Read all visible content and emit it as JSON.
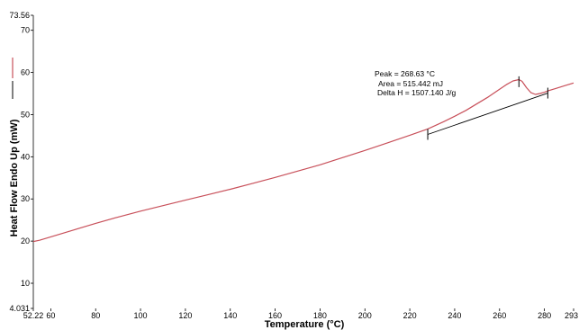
{
  "chart_data": {
    "type": "line",
    "xlabel": "Temperature (°C)",
    "ylabel": "Heat Flow Endo Up (mW)",
    "xlim": [
      52.22,
      293
    ],
    "ylim": [
      4.031,
      73.56
    ],
    "x_ticks": [
      {
        "value": 52.22,
        "label": "52.22"
      },
      {
        "value": 60,
        "label": "60"
      },
      {
        "value": 80,
        "label": "80"
      },
      {
        "value": 100,
        "label": "100"
      },
      {
        "value": 120,
        "label": "120"
      },
      {
        "value": 140,
        "label": "140"
      },
      {
        "value": 160,
        "label": "160"
      },
      {
        "value": 180,
        "label": "180"
      },
      {
        "value": 200,
        "label": "200"
      },
      {
        "value": 220,
        "label": "220"
      },
      {
        "value": 240,
        "label": "240"
      },
      {
        "value": 260,
        "label": "260"
      },
      {
        "value": 280,
        "label": "280"
      },
      {
        "value": 293,
        "label": "293"
      }
    ],
    "y_ticks": [
      {
        "value": 4.031,
        "label": "4.031"
      },
      {
        "value": 10,
        "label": "10"
      },
      {
        "value": 20,
        "label": "20"
      },
      {
        "value": 30,
        "label": "30"
      },
      {
        "value": 40,
        "label": "40"
      },
      {
        "value": 50,
        "label": "50"
      },
      {
        "value": 60,
        "label": "60"
      },
      {
        "value": 70,
        "label": "70"
      },
      {
        "value": 73.56,
        "label": "73.56"
      }
    ],
    "series": [
      {
        "color": "#c8505a",
        "x": [
          52.22,
          55,
          60,
          70,
          80,
          90,
          100,
          110,
          120,
          130,
          140,
          150,
          160,
          170,
          180,
          190,
          200,
          210,
          220,
          228,
          235,
          240,
          245,
          250,
          255,
          260,
          263,
          266,
          268.63,
          270,
          272,
          274,
          276,
          278,
          280,
          282,
          285,
          290,
          293
        ],
        "y": [
          19.9,
          20.2,
          21.0,
          22.6,
          24.2,
          25.7,
          27.1,
          28.4,
          29.7,
          31.0,
          32.3,
          33.7,
          35.1,
          36.6,
          38.1,
          39.8,
          41.5,
          43.3,
          45.1,
          46.6,
          48.3,
          49.6,
          51.0,
          52.6,
          54.2,
          56.0,
          57.1,
          58.0,
          58.3,
          57.9,
          56.4,
          55.2,
          54.8,
          55.0,
          55.3,
          55.7,
          56.2,
          57.0,
          57.5
        ]
      }
    ],
    "baseline": {
      "color": "#000000",
      "x": [
        228,
        281.5
      ],
      "y": [
        45.3,
        55.1
      ]
    },
    "markers": [
      {
        "x": 228,
        "y": 45.3
      },
      {
        "x": 268.63,
        "y": 57.8
      },
      {
        "x": 281.5,
        "y": 55.1
      }
    ],
    "annotations": [
      "Peak = 268.63 °C",
      "Area = 515.442 mJ",
      "Delta H = 1507.140 J/g"
    ],
    "grid": false
  }
}
